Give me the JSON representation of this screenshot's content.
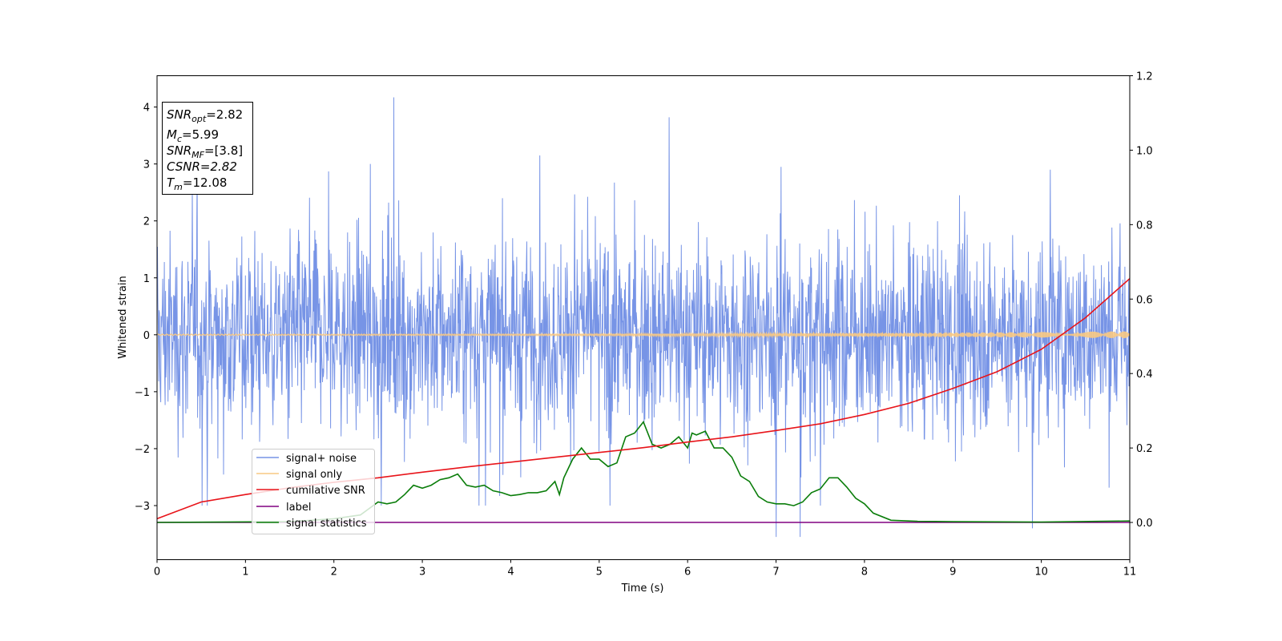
{
  "chart_data": {
    "type": "line",
    "title": "",
    "xlabel": "Time (s)",
    "ylabel": "Whitened strain",
    "xlim": [
      0,
      11
    ],
    "ylim_left": [
      -3.95,
      4.55
    ],
    "ylim_right": [
      -0.1,
      1.2
    ],
    "x_ticks": [
      "0",
      "1",
      "2",
      "3",
      "4",
      "5",
      "6",
      "7",
      "8",
      "9",
      "10",
      "11"
    ],
    "y_ticks_left": [
      "−3",
      "−2",
      "−1",
      "0",
      "1",
      "2",
      "3",
      "4"
    ],
    "y_ticks_right": [
      "0.0",
      "0.2",
      "0.4",
      "0.6",
      "0.8",
      "1.0",
      "1.2"
    ],
    "grid": false,
    "legend_position": "lower-left",
    "series": [
      {
        "name": "signal+ noise",
        "color": "#7794e6",
        "axis": "left",
        "description_values": "whitened noise, amplitude within about ±2.5 with peaks up to 4.2",
        "peaks": [
          [
            2.68,
            4.17
          ],
          [
            5.79,
            3.82
          ],
          [
            4.33,
            3.15
          ],
          [
            2.41,
            3.0
          ],
          [
            10.1,
            2.9
          ],
          [
            0.4,
            2.6
          ],
          [
            7.0,
            -3.55
          ],
          [
            7.27,
            -3.55
          ],
          [
            9.9,
            -3.4
          ],
          [
            0.57,
            -3.0
          ],
          [
            5.12,
            -3.0
          ],
          [
            7.5,
            -3.0
          ]
        ]
      },
      {
        "name": "signal only",
        "color": "#f9c982",
        "axis": "left",
        "description_values": "chirp near 0 growing to about ±0.06 at t=11"
      },
      {
        "name": "cumilative SNR",
        "color": "#e8141a",
        "axis": "right",
        "x": [
          0,
          0.5,
          1,
          1.5,
          2,
          2.5,
          3,
          3.5,
          4,
          4.5,
          5,
          5.5,
          6,
          6.5,
          7,
          7.5,
          8,
          8.5,
          9,
          9.5,
          10,
          10.5,
          11
        ],
        "values": [
          0.01,
          0.055,
          0.075,
          0.093,
          0.108,
          0.12,
          0.135,
          0.149,
          0.162,
          0.175,
          0.188,
          0.201,
          0.216,
          0.23,
          0.247,
          0.265,
          0.29,
          0.32,
          0.36,
          0.405,
          0.465,
          0.55,
          0.655
        ]
      },
      {
        "name": "label",
        "color": "#800080",
        "axis": "right",
        "x": [
          0,
          11
        ],
        "values": [
          0,
          0
        ]
      },
      {
        "name": "signal statistics",
        "color": "#0a7d0a",
        "axis": "right",
        "x": [
          0,
          1.5,
          2.0,
          2.3,
          2.5,
          2.6,
          2.7,
          2.8,
          2.9,
          3.0,
          3.1,
          3.2,
          3.3,
          3.4,
          3.5,
          3.6,
          3.7,
          3.8,
          3.9,
          4.0,
          4.1,
          4.2,
          4.3,
          4.4,
          4.5,
          4.55,
          4.6,
          4.7,
          4.8,
          4.9,
          5.0,
          5.1,
          5.2,
          5.3,
          5.4,
          5.5,
          5.6,
          5.7,
          5.8,
          5.9,
          6.0,
          6.05,
          6.1,
          6.2,
          6.3,
          6.4,
          6.5,
          6.6,
          6.7,
          6.8,
          6.9,
          7.0,
          7.1,
          7.2,
          7.3,
          7.4,
          7.5,
          7.6,
          7.7,
          7.8,
          7.9,
          8.0,
          8.1,
          8.3,
          8.6,
          9.0,
          10.0,
          11.0
        ],
        "values": [
          0.0,
          0.002,
          0.01,
          0.02,
          0.055,
          0.05,
          0.055,
          0.075,
          0.1,
          0.092,
          0.1,
          0.115,
          0.12,
          0.13,
          0.1,
          0.095,
          0.1,
          0.085,
          0.08,
          0.072,
          0.075,
          0.08,
          0.08,
          0.085,
          0.11,
          0.075,
          0.12,
          0.17,
          0.2,
          0.17,
          0.17,
          0.15,
          0.16,
          0.23,
          0.24,
          0.27,
          0.21,
          0.2,
          0.21,
          0.23,
          0.2,
          0.24,
          0.235,
          0.245,
          0.2,
          0.2,
          0.175,
          0.125,
          0.11,
          0.07,
          0.055,
          0.05,
          0.05,
          0.045,
          0.055,
          0.08,
          0.09,
          0.12,
          0.12,
          0.095,
          0.065,
          0.05,
          0.025,
          0.006,
          0.003,
          0.002,
          0.001,
          0.004
        ]
      }
    ],
    "info_box": {
      "snr_opt": "=2.82",
      "mc": "=5.99",
      "snr_mf": "=[3.8]",
      "csnr": "CSNR=2.82",
      "tm": "=12.08"
    }
  }
}
